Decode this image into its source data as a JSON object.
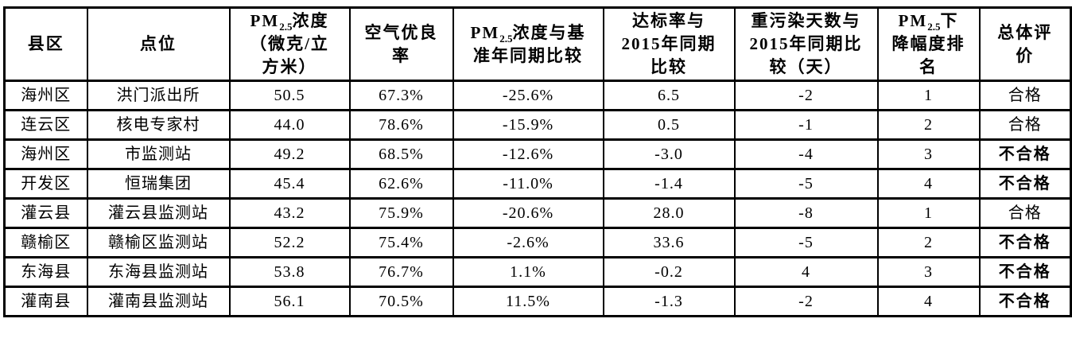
{
  "colors": {
    "background": "#ffffff",
    "text": "#000000",
    "border": "#000000"
  },
  "table": {
    "headers": [
      {
        "id": "county",
        "text": "县区"
      },
      {
        "id": "site",
        "text": "点位"
      },
      {
        "id": "pm25-concentration",
        "text": "PM~2.5~浓度\n（微克/立\n方米）"
      },
      {
        "id": "good-air-rate",
        "text": "空气优良\n率"
      },
      {
        "id": "pm25-vs-base-year",
        "text": "PM~2.5~浓度与基\n准年同期比较"
      },
      {
        "id": "attainment-vs-2015",
        "text": "达标率与\n2015年同期\n比较"
      },
      {
        "id": "heavy-pollution-days-vs-2015",
        "text": "重污染天数与\n2015年同期比\n较（天）"
      },
      {
        "id": "pm25-decline-rank",
        "text": "PM~2.5~下\n降幅度排\n名"
      },
      {
        "id": "overall-rating",
        "text": "总体评\n价"
      }
    ],
    "rows": [
      {
        "cells": [
          "海州区",
          "洪门派出所",
          "50.5",
          "67.3%",
          "-25.6%",
          "6.5",
          "-2",
          "1",
          "合格"
        ],
        "overall_bold": false
      },
      {
        "cells": [
          "连云区",
          "核电专家村",
          "44.0",
          "78.6%",
          "-15.9%",
          "0.5",
          "-1",
          "2",
          "合格"
        ],
        "overall_bold": false
      },
      {
        "cells": [
          "海州区",
          "市监测站",
          "49.2",
          "68.5%",
          "-12.6%",
          "-3.0",
          "-4",
          "3",
          "不合格"
        ],
        "overall_bold": true
      },
      {
        "cells": [
          "开发区",
          "恒瑞集团",
          "45.4",
          "62.6%",
          "-11.0%",
          "-1.4",
          "-5",
          "4",
          "不合格"
        ],
        "overall_bold": true
      },
      {
        "cells": [
          "灌云县",
          "灌云县监测站",
          "43.2",
          "75.9%",
          "-20.6%",
          "28.0",
          "-8",
          "1",
          "合格"
        ],
        "overall_bold": false
      },
      {
        "cells": [
          "赣榆区",
          "赣榆区监测站",
          "52.2",
          "75.4%",
          "-2.6%",
          "33.6",
          "-5",
          "2",
          "不合格"
        ],
        "overall_bold": true
      },
      {
        "cells": [
          "东海县",
          "东海县监测站",
          "53.8",
          "76.7%",
          "1.1%",
          "-0.2",
          "4",
          "3",
          "不合格"
        ],
        "overall_bold": true
      },
      {
        "cells": [
          "灌南县",
          "灌南县监测站",
          "56.1",
          "70.5%",
          "11.5%",
          "-1.3",
          "-2",
          "4",
          "不合格"
        ],
        "overall_bold": true
      }
    ]
  }
}
